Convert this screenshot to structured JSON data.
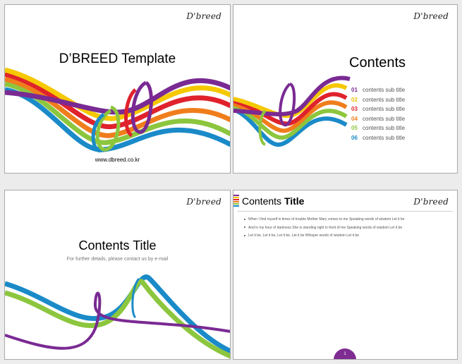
{
  "logo_text": "D'breed",
  "slide1": {
    "title": "D’BREED Template",
    "url": "www.dbreed.co.kr"
  },
  "slide2": {
    "heading": "Contents",
    "items": [
      {
        "num": "01",
        "label": "contents sub title",
        "color": "#7a2a93"
      },
      {
        "num": "02",
        "label": "contents sub title",
        "color": "#f0c000"
      },
      {
        "num": "03",
        "label": "contents sub title",
        "color": "#e0222c"
      },
      {
        "num": "04",
        "label": "contents sub title",
        "color": "#f07d1c"
      },
      {
        "num": "05",
        "label": "contents sub title",
        "color": "#8cc63e"
      },
      {
        "num": "06",
        "label": "contents sub title",
        "color": "#1a8ac8"
      }
    ]
  },
  "slide3": {
    "title": "Contents Title",
    "subtitle": "For further details, please contact us by e-mail"
  },
  "slide4": {
    "title_prefix": "Contents",
    "title_bold": "Title",
    "bullets": [
      "When I find myself in times of trouble Mother Mary comes to me Speaking words of wisdom Let it be",
      "And in my hour of darkness She is standing right in front of me Speaking words of wisdom Let it be",
      "Let it be, Let it be, Let it be, Let it be Whisper words of wisdom Let it be"
    ],
    "page_number": "1"
  },
  "colors": {
    "purple": "#7a2a93",
    "yellow": "#f5c800",
    "red": "#e0222c",
    "orange": "#f07d1c",
    "green": "#8cc63e",
    "blue": "#1a8ac8"
  }
}
